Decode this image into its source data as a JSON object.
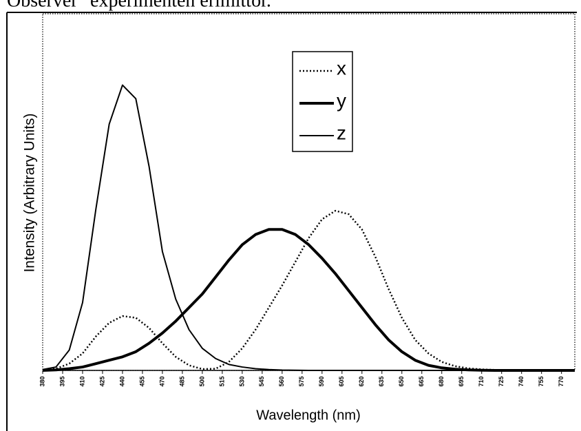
{
  "chart_data": {
    "type": "line",
    "title": "Observer\" experimenten erimittor.",
    "xlabel": "Wavelength (nm)",
    "ylabel": "Intensity (Arbitrary Units)",
    "x": [
      380,
      390,
      400,
      410,
      420,
      430,
      440,
      450,
      460,
      470,
      480,
      490,
      500,
      510,
      520,
      530,
      540,
      550,
      560,
      570,
      580,
      590,
      600,
      610,
      620,
      630,
      640,
      650,
      660,
      670,
      680,
      690,
      700,
      710,
      720,
      730,
      740,
      750,
      760,
      770,
      780
    ],
    "series": [
      {
        "name": "x",
        "color": "#000000",
        "line_style": "dotted",
        "line_width": 2.5,
        "values": [
          0.003,
          0.01,
          0.04,
          0.1,
          0.2,
          0.28,
          0.32,
          0.31,
          0.25,
          0.16,
          0.08,
          0.03,
          0.008,
          0.01,
          0.05,
          0.13,
          0.24,
          0.37,
          0.5,
          0.64,
          0.78,
          0.89,
          0.94,
          0.92,
          0.83,
          0.67,
          0.48,
          0.31,
          0.18,
          0.1,
          0.05,
          0.025,
          0.012,
          0.006,
          0.003,
          0.001,
          0,
          0,
          0,
          0,
          0
        ]
      },
      {
        "name": "y",
        "color": "#000000",
        "line_style": "solid",
        "line_width": 4,
        "values": [
          0,
          0.003,
          0.01,
          0.02,
          0.04,
          0.06,
          0.08,
          0.11,
          0.16,
          0.22,
          0.29,
          0.37,
          0.45,
          0.55,
          0.65,
          0.74,
          0.8,
          0.83,
          0.83,
          0.8,
          0.74,
          0.66,
          0.57,
          0.47,
          0.37,
          0.27,
          0.18,
          0.11,
          0.06,
          0.03,
          0.015,
          0.007,
          0.003,
          0.001,
          0,
          0,
          0,
          0,
          0,
          0,
          0
        ]
      },
      {
        "name": "z",
        "color": "#000000",
        "line_style": "solid",
        "line_width": 2,
        "values": [
          0.005,
          0.02,
          0.12,
          0.4,
          0.95,
          1.45,
          1.68,
          1.6,
          1.2,
          0.7,
          0.42,
          0.24,
          0.13,
          0.07,
          0.035,
          0.02,
          0.01,
          0.005,
          0.002,
          0.001,
          0,
          0,
          0,
          0,
          0,
          0,
          0,
          0,
          0,
          0,
          0,
          0,
          0,
          0,
          0,
          0,
          0,
          0,
          0,
          0,
          0
        ]
      }
    ],
    "xlim": [
      380,
      780
    ],
    "xticks": [
      380,
      395,
      410,
      425,
      440,
      455,
      470,
      485,
      500,
      515,
      530,
      545,
      560,
      575,
      590,
      605,
      620,
      635,
      650,
      665,
      680,
      695,
      710,
      725,
      740,
      755,
      770
    ],
    "ylim": [
      0,
      2.1
    ]
  }
}
